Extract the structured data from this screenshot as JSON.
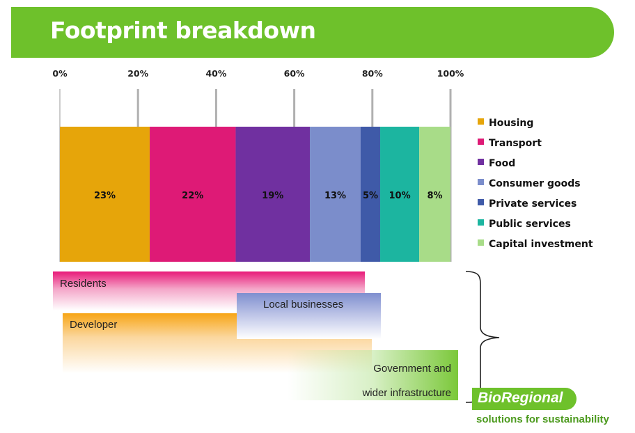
{
  "header": {
    "title": "Footprint breakdown"
  },
  "chart_data": {
    "type": "bar",
    "orientation": "horizontal-stacked",
    "title": "",
    "xlim": [
      0,
      100
    ],
    "x_ticks": [
      "0%",
      "20%",
      "40%",
      "60%",
      "80%",
      "100%"
    ],
    "grid": true,
    "legend_position": "right",
    "series": [
      {
        "name": "Housing",
        "value": 23,
        "label": "23%",
        "color": "#e6a50a"
      },
      {
        "name": "Transport",
        "value": 22,
        "label": "22%",
        "color": "#de1a76"
      },
      {
        "name": "Food",
        "value": 19,
        "label": "19%",
        "color": "#7030a0"
      },
      {
        "name": "Consumer goods",
        "value": 13,
        "label": "13%",
        "color": "#7b8dcb"
      },
      {
        "name": "Private services",
        "value": 5,
        "label": "5%",
        "color": "#3f5aa8"
      },
      {
        "name": "Public services",
        "value": 10,
        "label": "10%",
        "color": "#1cb5a0"
      },
      {
        "name": "Capital investment",
        "value": 8,
        "label": "8%",
        "color": "#a8dc88"
      }
    ]
  },
  "stakeholders": {
    "residents": "Residents",
    "local_businesses": "Local businesses",
    "developer": "Developer",
    "government_line1": "Government and",
    "government_line2": "wider infrastructure"
  },
  "logo": {
    "name": "BioRegional",
    "tagline": "solutions for sustainability"
  },
  "colors": {
    "brand_green": "#6ec12b"
  }
}
